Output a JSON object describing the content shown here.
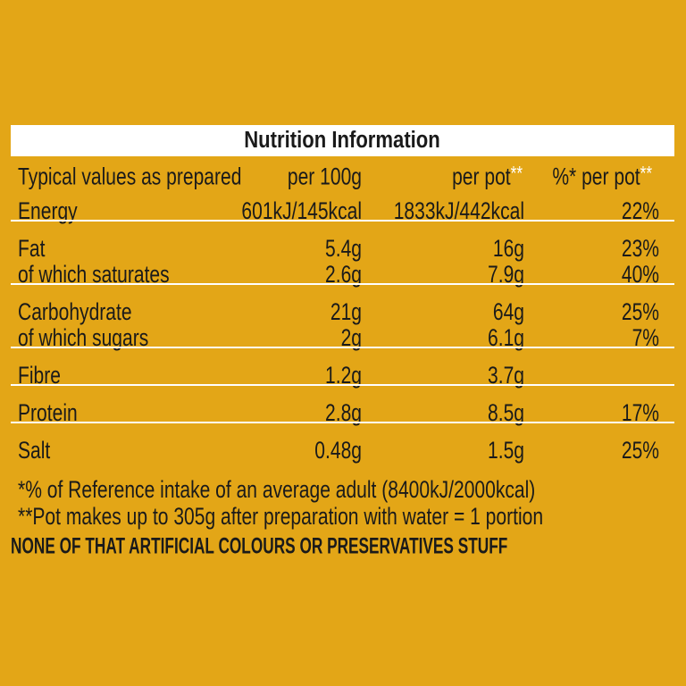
{
  "title": "Nutrition Information",
  "header": [
    {
      "text": "Typical values as prepared"
    },
    {
      "text": "per 100g"
    },
    {
      "text": "per pot",
      "note": "**"
    },
    {
      "text": "%* per pot",
      "note": "**"
    }
  ],
  "groups": [
    [
      [
        "Energy",
        "601kJ/145kcal",
        "1833kJ/442kcal",
        "22%"
      ]
    ],
    [
      [
        "Fat",
        "5.4g",
        "16g",
        "23%"
      ],
      [
        "of which saturates",
        "2.6g",
        "7.9g",
        "40%"
      ]
    ],
    [
      [
        "Carbohydrate",
        "21g",
        "64g",
        "25%"
      ],
      [
        "of which sugars",
        "2g",
        "6.1g",
        "7%"
      ]
    ],
    [
      [
        "Fibre",
        "1.2g",
        "3.7g",
        null
      ]
    ],
    [
      [
        "Protein",
        "2.8g",
        "8.5g",
        "17%"
      ]
    ],
    [
      [
        "Salt",
        "0.48g",
        "1.5g",
        "25%"
      ]
    ]
  ],
  "footnotes": [
    "*% of Reference intake of an average adult (8400kJ/2000kcal)",
    "**Pot makes up to 305g after preparation with water = 1 portion"
  ],
  "slogan": "NONE OF THAT ARTIFICIAL COLOURS OR PRESERVATIVES STUFF"
}
